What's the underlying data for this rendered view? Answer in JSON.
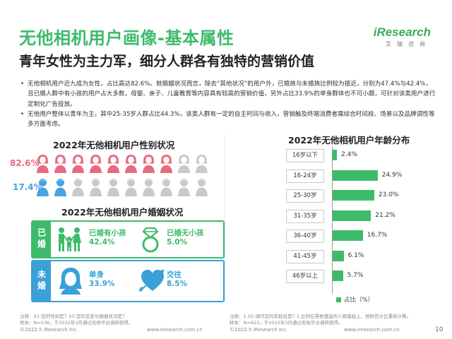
{
  "header": {
    "title": "无他相机用户画像-基本属性",
    "subtitle": "青年女性为主力军，细分人群各有独特的营销价值",
    "logo_word": "iResearch",
    "logo_cn": "艾瑞咨询"
  },
  "bullets": [
    "无他相机用户近九成为女性，占比高达82.6%。就婚姻状况而言，除去“其他状况”的用户外，已婚族与未婚族比例较为接近，分别为47.4%与42.4%，且已婚人群中有小孩的用户占大多数，母婴、亲子、儿童教育等内容具有较高的营销价值，另外占比33.9%的单身群体也不可小觑，可针对该类用户进行定制化广告投放。",
    "无他用户整体以青年为主，其中25-35岁人群占比44.3%，该类人群有一定的自主时间与收入，营销触及终端消费者需综合时间段、场景以及品牌调性等多方面考虑。"
  ],
  "gender": {
    "title": "2022年无他相机用户性别状况",
    "female_pct": "82.6%",
    "male_pct": "17.4%",
    "female_share": 0.826,
    "male_share": 0.174,
    "icons_per_row": 10,
    "female_color": "#e86b7d",
    "male_color": "#4aa3dc",
    "empty_color": "#c9c9c9"
  },
  "marital": {
    "title": "2022年无他相机用户婚姻状况",
    "married_tag": "已婚",
    "single_tag": "未婚",
    "married_with_kids_label": "已婚有小孩",
    "married_with_kids_pct": "42.4%",
    "married_no_kids_label": "已婚无小孩",
    "married_no_kids_pct": "5.0%",
    "single_label": "单身",
    "single_pct": "33.9%",
    "dating_label": "交往",
    "dating_pct": "8.5%"
  },
  "chart_data": {
    "type": "bar",
    "title": "2022年无他相机用户年龄分布",
    "orientation": "horizontal",
    "categories": [
      "16岁以下",
      "16-24岁",
      "25-30岁",
      "31-35岁",
      "36-40岁",
      "41-45岁",
      "46岁以上"
    ],
    "series": [
      {
        "name": "占比（%）",
        "values": [
          2.4,
          24.9,
          23.0,
          21.2,
          16.7,
          6.1,
          5.7
        ]
      }
    ],
    "value_labels": [
      "2.4%",
      "24.9%",
      "23.0%",
      "21.2%",
      "16.7%",
      "6.1%",
      "5.7%"
    ],
    "legend": "bottom",
    "color": "#3dbb6a"
  },
  "notes": {
    "left": "注释：X1:您的性别是？X5:您的恋爱与婚姻状况是？",
    "left_sample": "样本：N=536，于2022年3月通过无他平台调研获得。",
    "right": "注释：1.X2:请问您的年龄段是？2.比例在票数遴选的人群基础上，按照百分比重新计算。",
    "right_sample": "样本：N=423，于2022年3月通过无他平台调研获得。"
  },
  "footer": {
    "copyright": "©2022.5 iResearch Inc.",
    "url": "www.iresearch.com.cn",
    "page": "10"
  }
}
